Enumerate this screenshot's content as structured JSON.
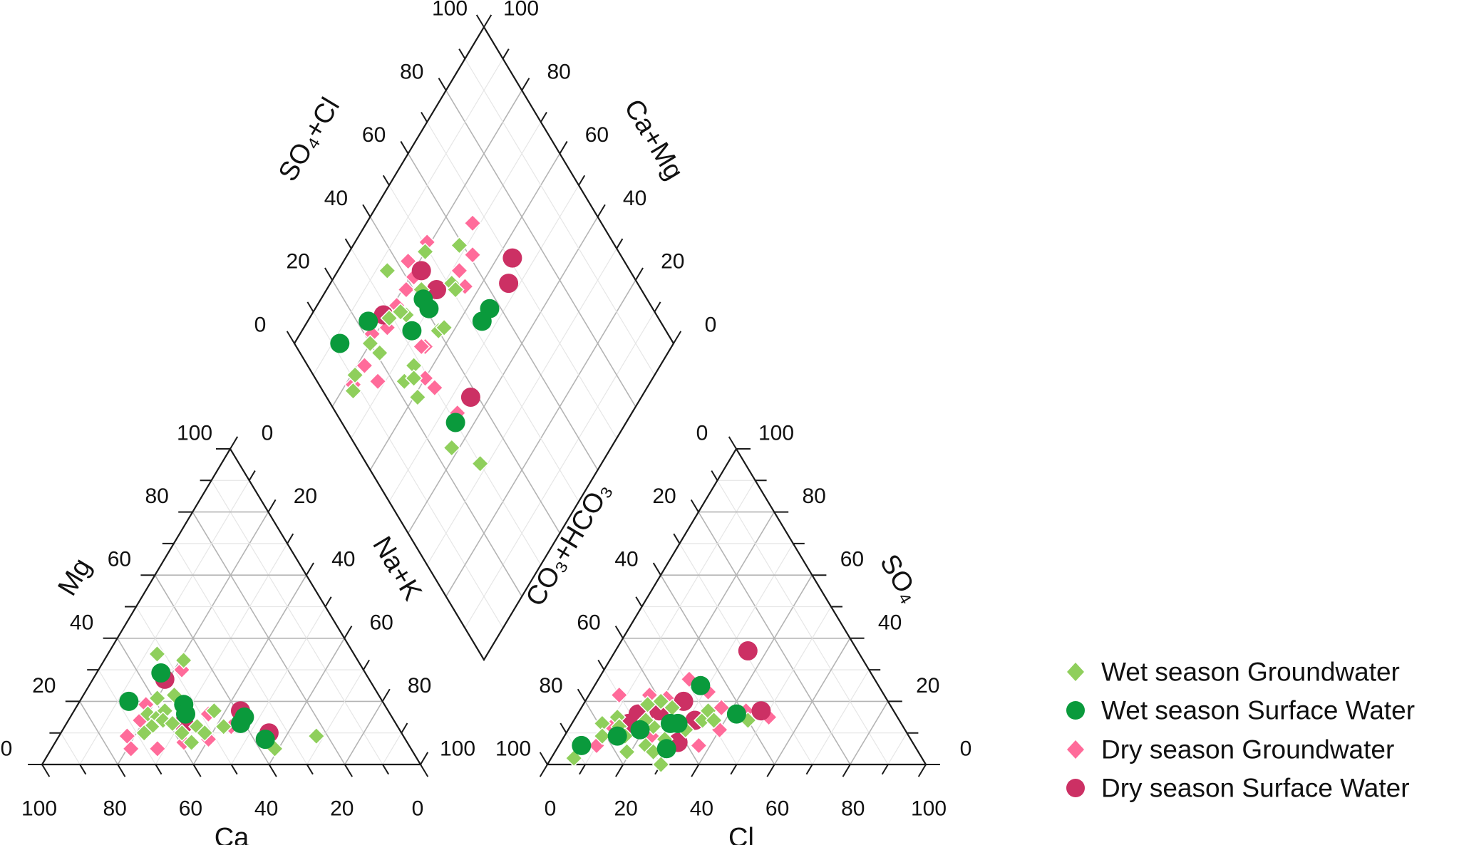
{
  "chart_data": {
    "type": "scatter",
    "subtype": "piper-diagram",
    "title": "",
    "colors": {
      "wet_gw": "#8fcf5c",
      "wet_sw": "#0a9a3c",
      "dry_gw": "#ff6b9a",
      "dry_sw": "#cc3064",
      "grid_major": "#b4b4b4",
      "grid_minor": "#e6e6e6",
      "axis": "#1a1a1a"
    },
    "legend": {
      "position": "right",
      "entries": [
        {
          "key": "wet_gw",
          "label": "Wet season Groundwater",
          "marker": "diamond"
        },
        {
          "key": "wet_sw",
          "label": "Wet season Surface Water",
          "marker": "circle"
        },
        {
          "key": "dry_gw",
          "label": "Dry season Groundwater",
          "marker": "diamond"
        },
        {
          "key": "dry_sw",
          "label": "Dry season Surface Water",
          "marker": "circle"
        }
      ]
    },
    "ticks": {
      "values": [
        0,
        20,
        40,
        60,
        80,
        100
      ],
      "labels": [
        "0",
        "20",
        "40",
        "60",
        "80",
        "100"
      ],
      "minor_step": 10
    },
    "cation_triangle": {
      "axes": {
        "bottom": "Ca",
        "left": "Mg",
        "right": "Na+K"
      },
      "point_order": [
        "Ca",
        "Mg",
        "Na+K"
      ],
      "series": {
        "dry_gw": [
          [
            48,
            30,
            22
          ],
          [
            63,
            19,
            18
          ],
          [
            67,
            14,
            19
          ],
          [
            73,
            9,
            18
          ],
          [
            74,
            5,
            21
          ],
          [
            67,
            5,
            28
          ],
          [
            52,
            8,
            40
          ],
          [
            48,
            16,
            36
          ],
          [
            44,
            12,
            44
          ],
          [
            59,
            7,
            34
          ]
        ],
        "dry_sw": [
          [
            54,
            27,
            19
          ],
          [
            39,
            17,
            44
          ],
          [
            35,
            10,
            55
          ],
          [
            56,
            13,
            31
          ]
        ],
        "wet_gw": [
          [
            52,
            35,
            13
          ],
          [
            46,
            33,
            21
          ],
          [
            59,
            21,
            20
          ],
          [
            54,
            22,
            24
          ],
          [
            64,
            16,
            20
          ],
          [
            62,
            15,
            23
          ],
          [
            59,
            17,
            24
          ],
          [
            61,
            14,
            25
          ],
          [
            65,
            12,
            23
          ],
          [
            59,
            13,
            28
          ],
          [
            68,
            10,
            22
          ],
          [
            58,
            10,
            32
          ],
          [
            57,
            7,
            36
          ],
          [
            53,
            12,
            35
          ],
          [
            52,
            10,
            38
          ],
          [
            46,
            17,
            37
          ],
          [
            46,
            12,
            42
          ],
          [
            36,
            5,
            59
          ],
          [
            23,
            9,
            68
          ]
        ],
        "wet_sw": [
          [
            54,
            29,
            17
          ],
          [
            67,
            20,
            13
          ],
          [
            53,
            19,
            28
          ],
          [
            54,
            16,
            30
          ],
          [
            39,
            15,
            46
          ],
          [
            41,
            13,
            46
          ],
          [
            37,
            8,
            55
          ]
        ]
      }
    },
    "anion_triangle": {
      "axes": {
        "bottom": "Cl",
        "left": "CO₃+HCO₃",
        "right": "SO₄"
      },
      "point_order": [
        "CO3+HCO3",
        "Cl",
        "SO4"
      ],
      "series": {
        "dry_gw": [
          [
            70,
            8,
            22
          ],
          [
            49,
            24,
            27
          ],
          [
            46,
            31,
            23
          ],
          [
            62,
            16,
            22
          ],
          [
            58,
            21,
            21
          ],
          [
            45,
            37,
            18
          ],
          [
            39,
            44,
            17
          ],
          [
            34,
            51,
            15
          ],
          [
            49,
            40,
            11
          ],
          [
            57,
            37,
            6
          ],
          [
            84,
            10,
            6
          ],
          [
            77,
            11,
            12
          ],
          [
            68,
            23,
            9
          ]
        ],
        "dry_sw": [
          [
            29,
            35,
            36
          ],
          [
            54,
            26,
            20
          ],
          [
            62,
            21,
            17
          ],
          [
            68,
            16,
            16
          ],
          [
            72,
            15,
            13
          ],
          [
            54,
            32,
            14
          ],
          [
            62,
            31,
            7
          ],
          [
            35,
            48,
            17
          ]
        ],
        "wet_gw": [
          [
            92,
            6,
            2
          ],
          [
            79,
            8,
            13
          ],
          [
            74,
            11,
            15
          ],
          [
            81,
            10,
            9
          ],
          [
            75,
            13,
            12
          ],
          [
            75,
            16,
            9
          ],
          [
            77,
            19,
            4
          ],
          [
            71,
            23,
            6
          ],
          [
            70,
            26,
            4
          ],
          [
            70,
            30,
            0
          ],
          [
            65,
            27,
            8
          ],
          [
            66,
            22,
            12
          ],
          [
            64,
            17,
            19
          ],
          [
            60,
            20,
            20
          ],
          [
            58,
            24,
            18
          ],
          [
            67,
            19,
            14
          ],
          [
            58,
            31,
            11
          ],
          [
            52,
            34,
            14
          ],
          [
            49,
            34,
            17
          ],
          [
            49,
            37,
            14
          ],
          [
            40,
            46,
            14
          ]
        ],
        "wet_sw": [
          [
            88,
            6,
            6
          ],
          [
            77,
            14,
            9
          ],
          [
            70,
            19,
            11
          ],
          [
            66,
            29,
            5
          ],
          [
            61,
            26,
            13
          ],
          [
            59,
            28,
            13
          ],
          [
            47,
            28,
            25
          ],
          [
            42,
            42,
            16
          ]
        ]
      }
    },
    "diamond": {
      "axes": {
        "upper_left": "SO₄+Cl",
        "upper_right": "Ca+Mg"
      },
      "point_order": [
        "Ca+Mg",
        "SO4+Cl"
      ],
      "series": {
        "dry_gw": [
          [
            72,
            66
          ],
          [
            81,
            51
          ],
          [
            67,
            61
          ],
          [
            83,
            43
          ],
          [
            68,
            55
          ],
          [
            79,
            42
          ],
          [
            79,
            38
          ],
          [
            64,
            54
          ],
          [
            79,
            33
          ],
          [
            78,
            27
          ],
          [
            81,
            22
          ],
          [
            65,
            34
          ],
          [
            66,
            33
          ],
          [
            78,
            15
          ],
          [
            72,
            16
          ],
          [
            78,
            9
          ],
          [
            60,
            29
          ],
          [
            56,
            30
          ],
          [
            46,
            32
          ]
        ],
        "dry_sw": [
          [
            78,
            45
          ],
          [
            71,
            46
          ],
          [
            81,
            28
          ],
          [
            56,
            71
          ],
          [
            53,
            66
          ],
          [
            45,
            38
          ]
        ],
        "wet_gw": [
          [
            80,
            49
          ],
          [
            87,
            36
          ],
          [
            72,
            59
          ],
          [
            75,
            42
          ],
          [
            68,
            51
          ],
          [
            66,
            51
          ],
          [
            79,
            29
          ],
          [
            75,
            34
          ],
          [
            77,
            33
          ],
          [
            64,
            40
          ],
          [
            63,
            42
          ],
          [
            80,
            20
          ],
          [
            76,
            21
          ],
          [
            79,
            11
          ],
          [
            77,
            8
          ],
          [
            65,
            23
          ],
          [
            65,
            28
          ],
          [
            63,
            26
          ],
          [
            59,
            24
          ],
          [
            42,
            25
          ],
          [
            32,
            30
          ]
        ],
        "wet_sw": [
          [
            73,
            41
          ],
          [
            70,
            41
          ],
          [
            84,
            23
          ],
          [
            71,
            33
          ],
          [
            54,
            57
          ],
          [
            54,
            53
          ],
          [
            88,
            12
          ],
          [
            45,
            30
          ]
        ]
      }
    },
    "draw_order": [
      "dry_gw",
      "dry_sw",
      "wet_gw",
      "wet_sw"
    ]
  }
}
